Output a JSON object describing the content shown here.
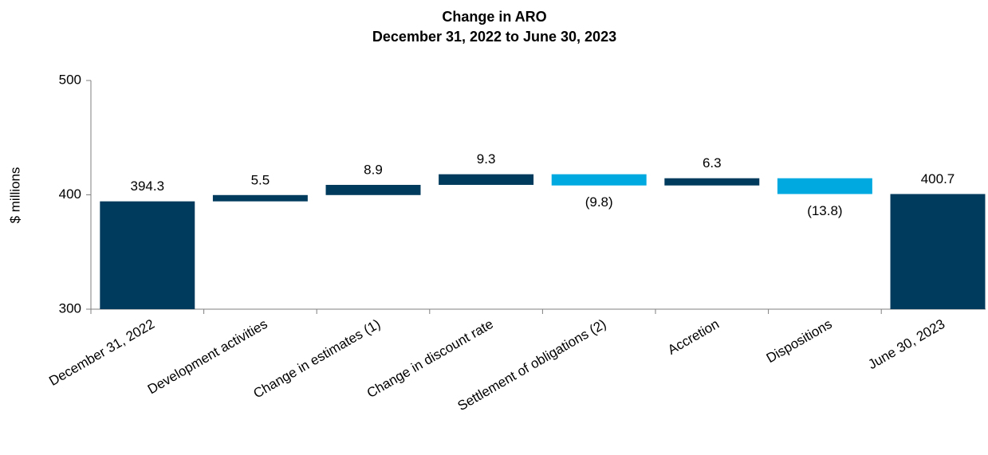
{
  "chart_data": {
    "type": "waterfall",
    "title": "Change in ARO",
    "subtitle": "December 31, 2022 to June 30, 2023",
    "ylabel": "$ millions",
    "categories": [
      "December 31, 2022",
      "Development activities",
      "Change in estimates (1)",
      "Change in discount rate",
      "Settlement of obligations (2)",
      "Accretion",
      "Dispositions",
      "June 30, 2023"
    ],
    "values": [
      394.3,
      5.5,
      8.9,
      9.3,
      -9.8,
      6.3,
      -13.8,
      400.7
    ],
    "value_labels": [
      "394.3",
      "5.5",
      "8.9",
      "9.3",
      "(9.8)",
      "6.3",
      "(13.8)",
      "400.7"
    ],
    "color": "#003a5c",
    "negative_color": "#00a9e0",
    "ylim": [
      300,
      500
    ],
    "yticks": [
      300,
      400,
      500
    ]
  }
}
